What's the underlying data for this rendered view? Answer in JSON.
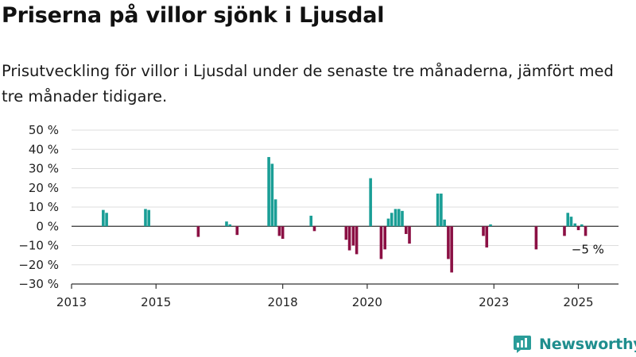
{
  "header": {
    "title": "Priserna på villor sjönk i Ljusdal",
    "subtitle": "Prisutveckling för villor i Ljusdal under de senaste tre månaderna, jämfört med tre månader tidigare."
  },
  "brand": {
    "name": "Newsworthy",
    "icon": "newsworthy-logo-icon"
  },
  "colors": {
    "positive": "#1a9e96",
    "negative": "#8b1044",
    "grid": "#dddddd",
    "axis": "#333333"
  },
  "chart_data": {
    "type": "bar",
    "title": "Priserna på villor sjönk i Ljusdal",
    "ylim": [
      -30,
      50
    ],
    "yticks": [
      -30,
      -20,
      -10,
      0,
      10,
      20,
      30,
      40,
      50
    ],
    "ytick_labels": [
      "−30 %",
      "−20 %",
      "−10 %",
      "0 %",
      "10 %",
      "20 %",
      "30 %",
      "40 %",
      "50 %"
    ],
    "xlim": [
      2013.0,
      2025.95
    ],
    "xticks": [
      2013,
      2015,
      2018,
      2020,
      2023,
      2025
    ],
    "xtick_labels": [
      "2013",
      "2015",
      "2018",
      "2020",
      "2023",
      "2025"
    ],
    "grid": "horizontal",
    "annotation": {
      "label": "−5 %",
      "x": 2025.25,
      "y": -5
    },
    "points": [
      {
        "x": 2013.75,
        "y": 8.5
      },
      {
        "x": 2013.83,
        "y": 7
      },
      {
        "x": 2014.75,
        "y": 9
      },
      {
        "x": 2014.83,
        "y": 8.5
      },
      {
        "x": 2016.0,
        "y": -5.5
      },
      {
        "x": 2016.67,
        "y": 2.5
      },
      {
        "x": 2016.75,
        "y": 1
      },
      {
        "x": 2016.92,
        "y": -4.5
      },
      {
        "x": 2017.67,
        "y": 36
      },
      {
        "x": 2017.75,
        "y": 32.5
      },
      {
        "x": 2017.83,
        "y": 14
      },
      {
        "x": 2017.92,
        "y": -5
      },
      {
        "x": 2018.0,
        "y": -6.5
      },
      {
        "x": 2018.67,
        "y": 5.5
      },
      {
        "x": 2018.75,
        "y": -2.5
      },
      {
        "x": 2019.5,
        "y": -7
      },
      {
        "x": 2019.58,
        "y": -12.5
      },
      {
        "x": 2019.67,
        "y": -10
      },
      {
        "x": 2019.75,
        "y": -14.5
      },
      {
        "x": 2020.08,
        "y": 25
      },
      {
        "x": 2020.33,
        "y": -17
      },
      {
        "x": 2020.42,
        "y": -12
      },
      {
        "x": 2020.5,
        "y": 4
      },
      {
        "x": 2020.58,
        "y": 7
      },
      {
        "x": 2020.67,
        "y": 9
      },
      {
        "x": 2020.75,
        "y": 9
      },
      {
        "x": 2020.83,
        "y": 8
      },
      {
        "x": 2020.92,
        "y": -4
      },
      {
        "x": 2021.0,
        "y": -9
      },
      {
        "x": 2021.67,
        "y": 17
      },
      {
        "x": 2021.75,
        "y": 17
      },
      {
        "x": 2021.83,
        "y": 3.5
      },
      {
        "x": 2021.92,
        "y": -17
      },
      {
        "x": 2022.0,
        "y": -24
      },
      {
        "x": 2022.75,
        "y": -5
      },
      {
        "x": 2022.83,
        "y": -11
      },
      {
        "x": 2022.92,
        "y": 1
      },
      {
        "x": 2024.0,
        "y": -12
      },
      {
        "x": 2024.67,
        "y": -5
      },
      {
        "x": 2024.75,
        "y": 7
      },
      {
        "x": 2024.83,
        "y": 5
      },
      {
        "x": 2024.92,
        "y": 1.5
      },
      {
        "x": 2025.0,
        "y": -2
      },
      {
        "x": 2025.08,
        "y": 1
      },
      {
        "x": 2025.17,
        "y": -5
      }
    ]
  }
}
